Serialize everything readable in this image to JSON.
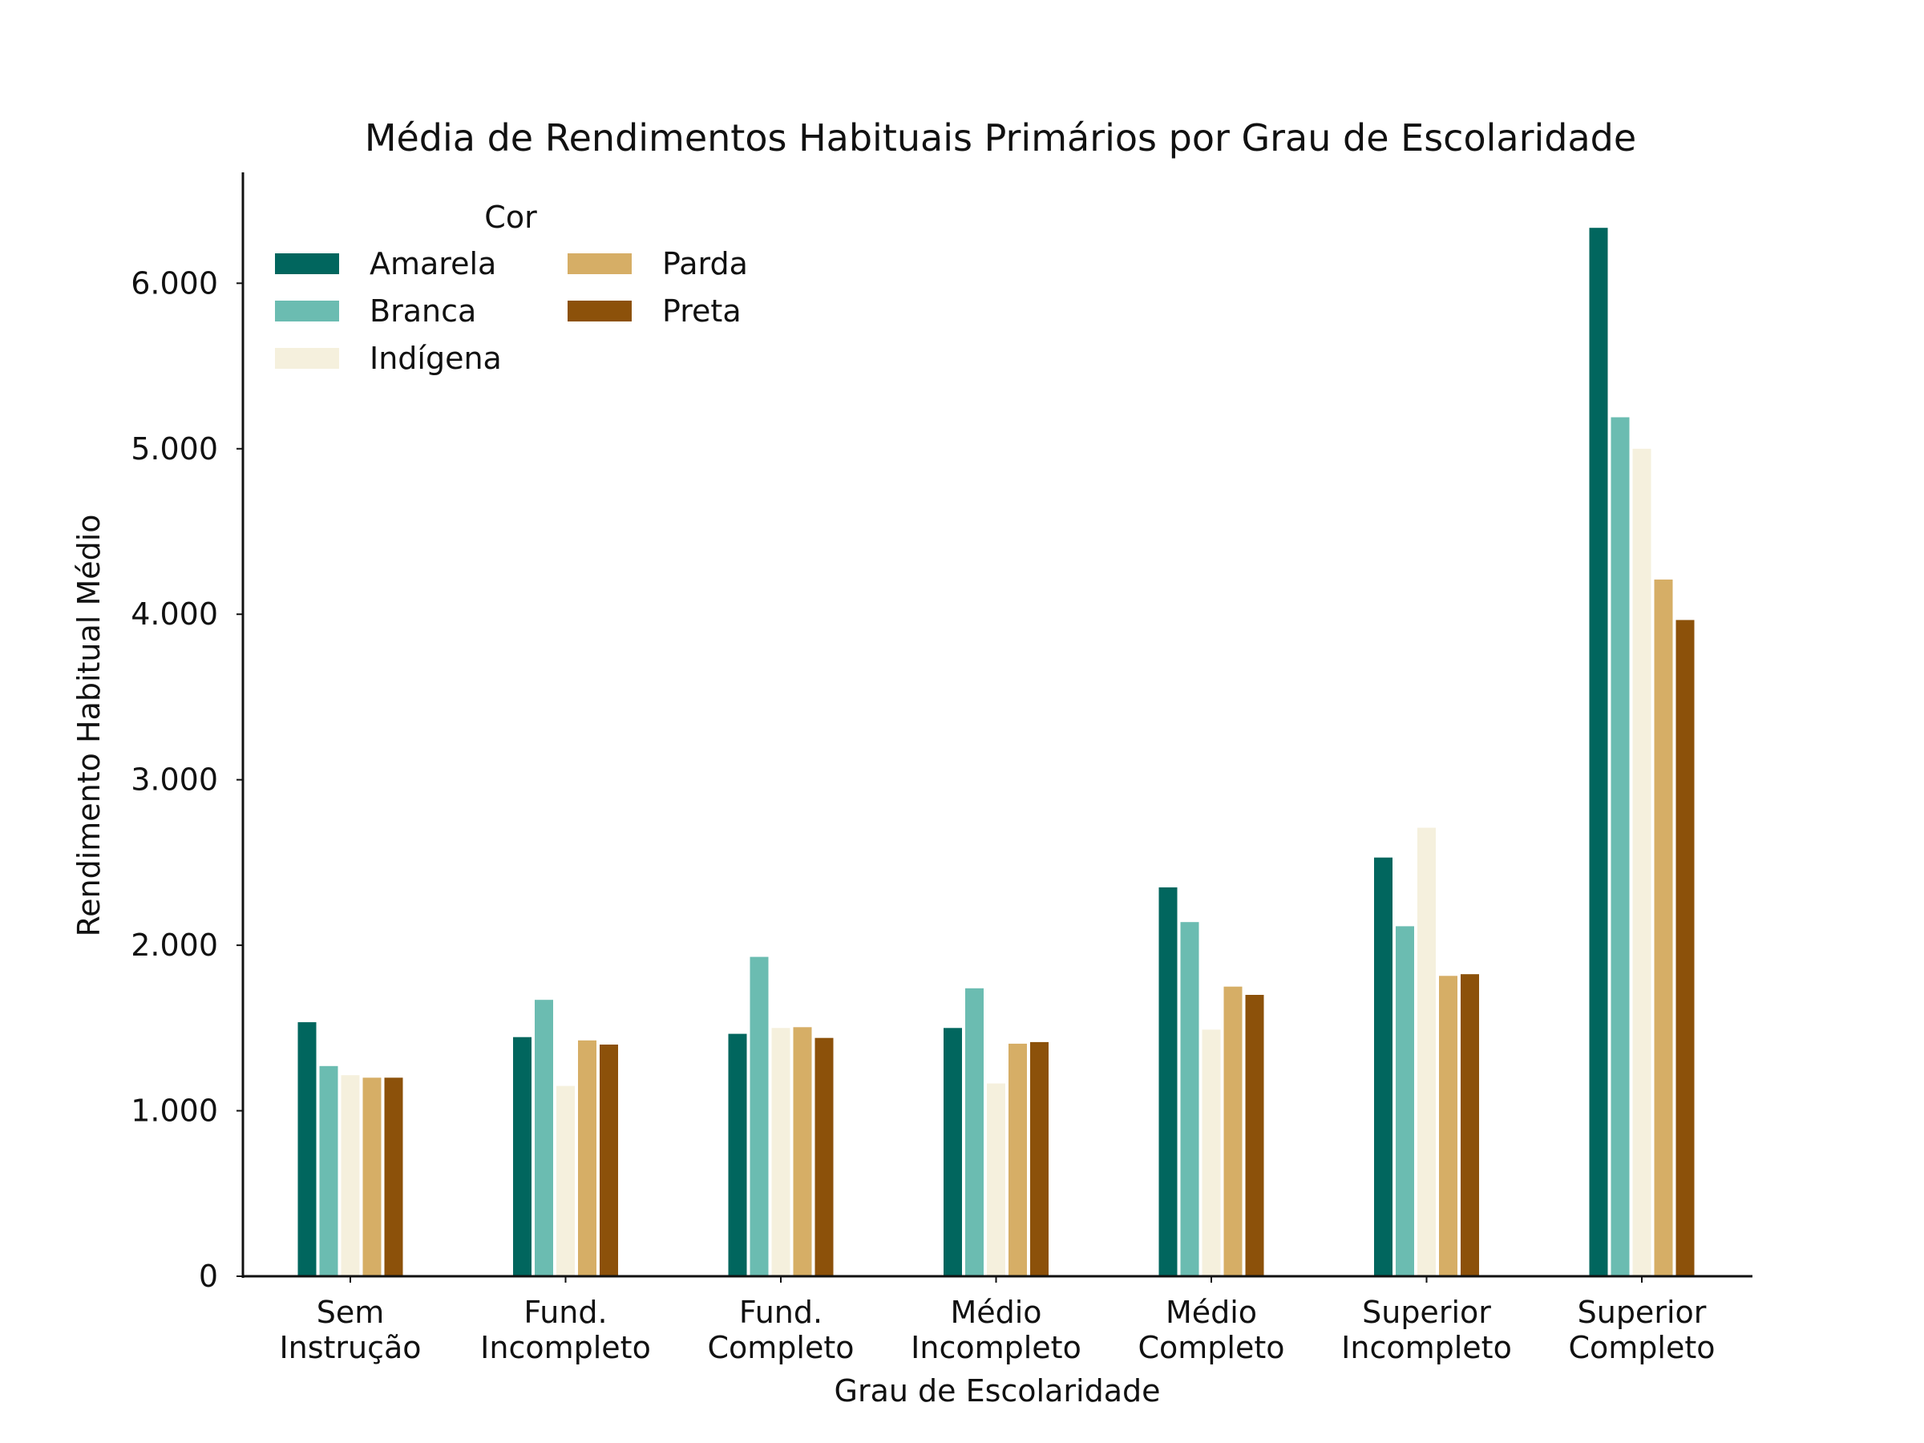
{
  "chart_data": {
    "type": "bar",
    "title": "Média de Rendimentos Habituais Primários por Grau de Escolaridade",
    "xlabel": "Grau de Escolaridade",
    "ylabel": "Rendimento Habitual Médio",
    "categories": [
      [
        "Sem",
        "Instrução"
      ],
      [
        "Fund.",
        "Incompleto"
      ],
      [
        "Fund.",
        "Completo"
      ],
      [
        "Médio",
        "Incompleto"
      ],
      [
        "Médio",
        "Completo"
      ],
      [
        "Superior",
        "Incompleto"
      ],
      [
        "Superior",
        "Completo"
      ]
    ],
    "ylim": [
      0,
      6670
    ],
    "yticks": [
      0,
      1000,
      2000,
      3000,
      4000,
      5000,
      6000
    ],
    "ytick_labels": [
      "0",
      "1.000",
      "2.000",
      "3.000",
      "4.000",
      "5.000",
      "6.000"
    ],
    "grid": false,
    "legend": {
      "title": "Cor",
      "placement": "top-left"
    },
    "series": [
      {
        "name": "Amarela",
        "color": "#01665e",
        "values": [
          1535,
          1445,
          1465,
          1500,
          2350,
          2530,
          6335
        ]
      },
      {
        "name": "Branca",
        "color": "#6bbcb1",
        "values": [
          1270,
          1670,
          1930,
          1740,
          2140,
          2115,
          5190
        ]
      },
      {
        "name": "Indígena",
        "color": "#f5f0dd",
        "values": [
          1215,
          1150,
          1500,
          1165,
          1490,
          2710,
          5000
        ]
      },
      {
        "name": "Parda",
        "color": "#d6ae66",
        "values": [
          1200,
          1425,
          1505,
          1405,
          1750,
          1815,
          4210
        ]
      },
      {
        "name": "Preta",
        "color": "#8c510a",
        "values": [
          1200,
          1400,
          1440,
          1415,
          1700,
          1825,
          3965
        ]
      }
    ]
  }
}
